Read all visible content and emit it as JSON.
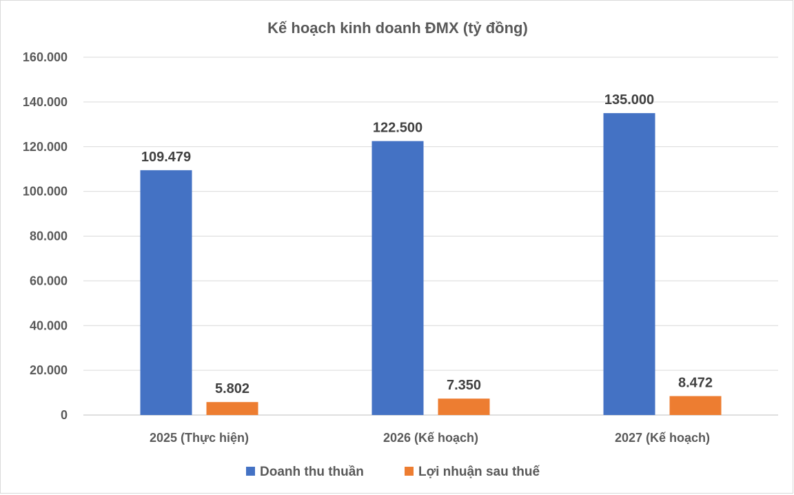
{
  "chart_data": {
    "type": "bar",
    "title": "Kế hoạch kinh doanh ĐMX (tỷ đồng)",
    "categories": [
      "2025 (Thực hiện)",
      "2026 (Kế hoạch)",
      "2027 (Kế hoạch)"
    ],
    "series": [
      {
        "name": "Doanh thu thuần",
        "values": [
          109479,
          122500,
          135000
        ],
        "labels": [
          "109.479",
          "122.500",
          "135.000"
        ],
        "color": "#4472c4"
      },
      {
        "name": "Lợi nhuận sau thuế",
        "values": [
          5802,
          7350,
          8472
        ],
        "labels": [
          "5.802",
          "7.350",
          "8.472"
        ],
        "color": "#ed7d31"
      }
    ],
    "ylim": [
      0,
      160000
    ],
    "yticks": [
      0,
      20000,
      40000,
      60000,
      80000,
      100000,
      120000,
      140000,
      160000
    ],
    "ytick_labels": [
      "0",
      "20.000",
      "40.000",
      "60.000",
      "80.000",
      "100.000",
      "120.000",
      "140.000",
      "160.000"
    ],
    "xlabel": "",
    "ylabel": "",
    "grid": true,
    "legend_position": "bottom"
  }
}
